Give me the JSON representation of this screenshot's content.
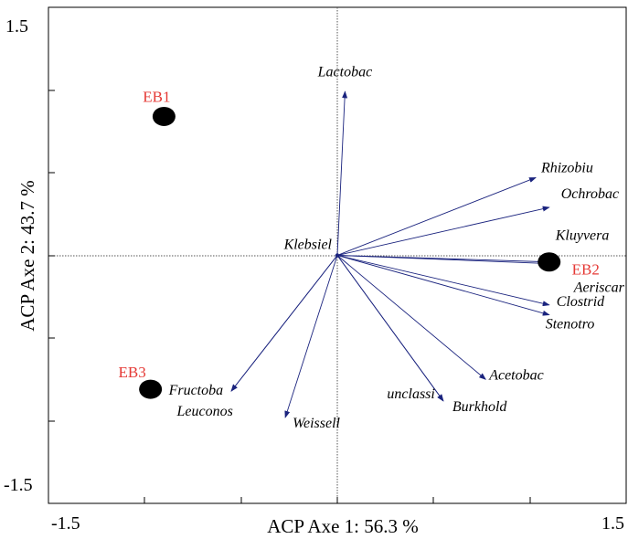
{
  "chart_data": {
    "type": "scatter",
    "subtype": "pca-biplot",
    "xlabel": "ACP Axe 1: 56.3 %",
    "ylabel": "ACP Axe 2: 43.7 %",
    "xlim": [
      -1.5,
      1.5
    ],
    "ylim": [
      -1.5,
      1.5
    ],
    "x_tick_labels": [
      "-1.5",
      "1.5"
    ],
    "y_tick_labels": [
      "1.5",
      "-1.5"
    ],
    "grid": false,
    "zero_lines": true,
    "vector_color": "#1a237e",
    "observation_label_color": "#e53935",
    "point_color": "#000000",
    "observations": [
      {
        "label": "EB1",
        "x": -0.9,
        "y": 0.84
      },
      {
        "label": "EB2",
        "x": 1.1,
        "y": -0.04
      },
      {
        "label": "EB3",
        "x": -0.97,
        "y": -0.81
      }
    ],
    "variables": [
      {
        "label": "Lactobac",
        "x": 0.04,
        "y": 0.99
      },
      {
        "label": "Rhizobiu",
        "x": 1.03,
        "y": 0.47
      },
      {
        "label": "Ochrobac",
        "x": 1.1,
        "y": 0.29
      },
      {
        "label": "Kluyvera",
        "x": 1.1,
        "y": -0.04
      },
      {
        "label": "Aeriscar",
        "x": 1.1,
        "y": -0.05
      },
      {
        "label": "Klebsiel",
        "x": 0.0,
        "y": 0.0
      },
      {
        "label": "Clostrid",
        "x": 1.1,
        "y": -0.3
      },
      {
        "label": "Stenotro",
        "x": 1.1,
        "y": -0.36
      },
      {
        "label": "Acetobac",
        "x": 0.77,
        "y": -0.75
      },
      {
        "label": "unclassi",
        "x": 0.55,
        "y": -0.88
      },
      {
        "label": "Burkhold",
        "x": 0.55,
        "y": -0.88
      },
      {
        "label": "Fructoba",
        "x": -0.55,
        "y": -0.82
      },
      {
        "label": "Leuconos",
        "x": -0.55,
        "y": -0.82
      },
      {
        "label": "Weissell",
        "x": -0.27,
        "y": -0.98
      }
    ]
  }
}
